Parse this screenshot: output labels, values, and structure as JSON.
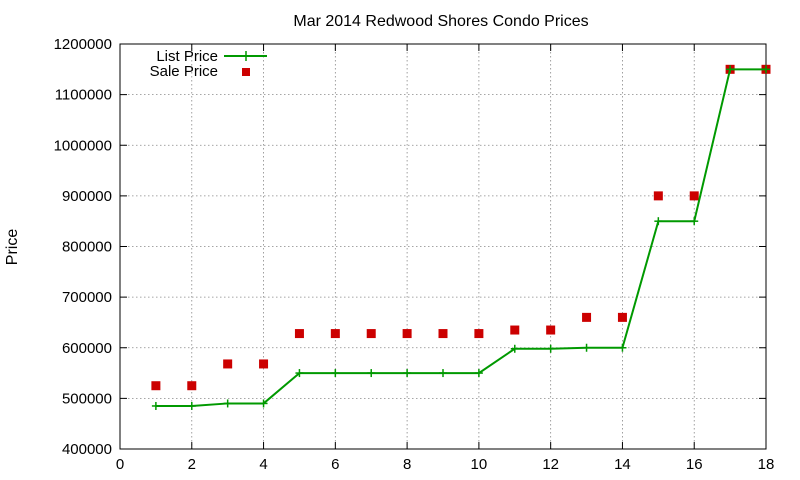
{
  "chart_data": {
    "type": "line",
    "title": "Mar 2014 Redwood Shores Condo Prices",
    "xlabel": "",
    "ylabel": "Price",
    "xlim": [
      0,
      18
    ],
    "ylim": [
      400000,
      1200000
    ],
    "x_ticks": [
      0,
      2,
      4,
      6,
      8,
      10,
      12,
      14,
      16,
      18
    ],
    "y_ticks": [
      400000,
      500000,
      600000,
      700000,
      800000,
      900000,
      1000000,
      1100000,
      1200000
    ],
    "grid": true,
    "legend_position": "top-left",
    "series": [
      {
        "name": "List Price",
        "style": "line+cross",
        "color": "#009900",
        "x": [
          1,
          2,
          3,
          4,
          5,
          6,
          7,
          8,
          9,
          10,
          11,
          12,
          13,
          14,
          15,
          16,
          17,
          18
        ],
        "values": [
          485000,
          485000,
          490000,
          490000,
          550000,
          550000,
          550000,
          550000,
          550000,
          550000,
          598000,
          598000,
          600000,
          600000,
          850000,
          850000,
          1150000,
          1150000
        ]
      },
      {
        "name": "Sale Price",
        "style": "square",
        "color": "#cc0000",
        "x": [
          1,
          2,
          3,
          4,
          5,
          6,
          7,
          8,
          9,
          10,
          11,
          12,
          13,
          14,
          15,
          16,
          17,
          18
        ],
        "values": [
          525000,
          525000,
          568000,
          568000,
          628000,
          628000,
          628000,
          628000,
          628000,
          628000,
          635000,
          635000,
          660000,
          660000,
          900000,
          900000,
          1150000,
          1150000
        ]
      }
    ]
  }
}
